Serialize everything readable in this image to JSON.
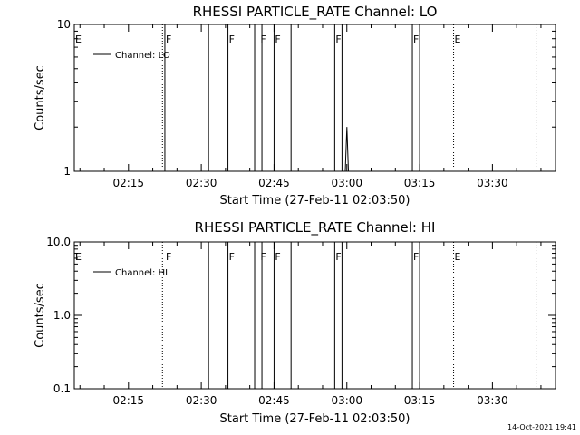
{
  "chart_data": [
    {
      "type": "line",
      "title": "RHESSI PARTICLE_RATE Channel: LO",
      "xlabel": "Start Time (27-Feb-11 02:03:50)",
      "ylabel": "Counts/sec",
      "yscale": "log",
      "ylim": [
        1,
        10
      ],
      "ytick_labels": [
        "1",
        "10"
      ],
      "xlim": [
        "02:03:50",
        "03:43:00"
      ],
      "xtick_labels": [
        "02:15",
        "02:30",
        "02:45",
        "03:00",
        "03:15",
        "03:30"
      ],
      "legend": {
        "position": "top-left",
        "label": "Channel: LO"
      },
      "series": [
        {
          "name": "Channel: LO",
          "x": [
            "02:59:40",
            "03:00:00",
            "03:00:20"
          ],
          "y": [
            1.0,
            2.0,
            1.0
          ]
        }
      ],
      "solid_lines": [
        "02:22:30",
        "02:31:30",
        "02:35:30",
        "02:41:00",
        "02:42:30",
        "02:45:00",
        "02:48:30",
        "02:57:30",
        "02:59:00",
        "03:13:30",
        "03:15:00"
      ],
      "dotted_lines": [
        "02:22:00",
        "03:22:00",
        "03:39:00"
      ],
      "flags": [
        {
          "text": "E",
          "x": "02:03:50"
        },
        {
          "text": "F",
          "x": "02:22:30"
        },
        {
          "text": "F",
          "x": "02:35:30"
        },
        {
          "text": "F",
          "x": "02:42:00"
        },
        {
          "text": "F",
          "x": "02:45:00"
        },
        {
          "text": "F",
          "x": "02:57:30"
        },
        {
          "text": "F",
          "x": "03:13:30"
        },
        {
          "text": "E",
          "x": "03:22:00"
        }
      ]
    },
    {
      "type": "line",
      "title": "RHESSI PARTICLE_RATE Channel: HI",
      "xlabel": "Start Time (27-Feb-11 02:03:50)",
      "ylabel": "Counts/sec",
      "yscale": "log",
      "ylim": [
        0.1,
        10
      ],
      "ytick_labels": [
        "0.1",
        "1.0",
        "10.0"
      ],
      "xlim": [
        "02:03:50",
        "03:43:00"
      ],
      "xtick_labels": [
        "02:15",
        "02:30",
        "02:45",
        "03:00",
        "03:15",
        "03:30"
      ],
      "legend": {
        "position": "top-left",
        "label": "Channel: HI"
      },
      "series": [
        {
          "name": "Channel: HI",
          "x": [],
          "y": []
        }
      ],
      "solid_lines": [
        "02:31:30",
        "02:35:30",
        "02:41:00",
        "02:42:30",
        "02:45:00",
        "02:48:30",
        "02:57:30",
        "02:59:00",
        "03:13:30",
        "03:15:00"
      ],
      "dotted_lines": [
        "02:22:00",
        "03:22:00",
        "03:39:00"
      ],
      "flags": [
        {
          "text": "E",
          "x": "02:03:50"
        },
        {
          "text": "F",
          "x": "02:22:30"
        },
        {
          "text": "F",
          "x": "02:35:30"
        },
        {
          "text": "F",
          "x": "02:42:00"
        },
        {
          "text": "F",
          "x": "02:45:00"
        },
        {
          "text": "F",
          "x": "02:57:30"
        },
        {
          "text": "F",
          "x": "03:13:30"
        },
        {
          "text": "E",
          "x": "03:22:00"
        }
      ]
    }
  ],
  "footer": {
    "timestamp": "14-Oct-2021 19:41"
  }
}
